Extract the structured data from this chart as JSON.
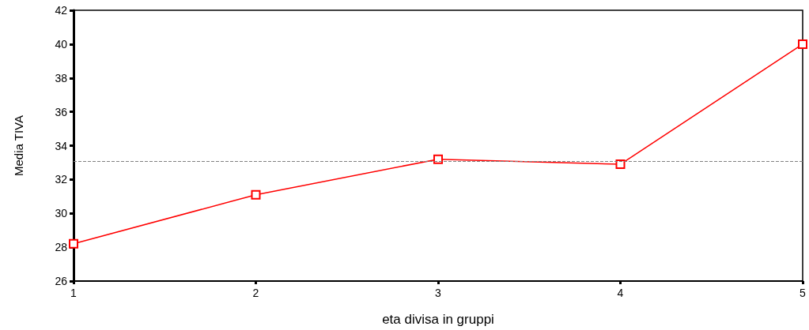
{
  "chart_data": {
    "type": "line",
    "xlabel": "eta divisa in gruppi",
    "ylabel": "Media TIVA",
    "x": [
      1,
      2,
      3,
      4,
      5
    ],
    "series": [
      {
        "color": "#ff0000",
        "values": [
          28.2,
          31.1,
          33.2,
          32.9,
          40.0
        ]
      }
    ],
    "xlim": [
      1,
      5
    ],
    "xticks": [
      1,
      2,
      3,
      4,
      5
    ],
    "ylim": [
      26,
      42
    ],
    "yticks": [
      26,
      28,
      30,
      32,
      34,
      36,
      38,
      40,
      42
    ],
    "marker": "square",
    "line_style": "solid",
    "grid": false,
    "ref_lines": [
      {
        "axis": "y",
        "value": 33.1,
        "color": "#808080",
        "line_style": "dashed"
      }
    ]
  }
}
